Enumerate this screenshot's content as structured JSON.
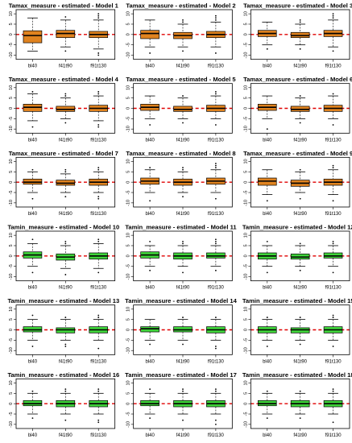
{
  "style": {
    "tamax_fill": "#e0831f",
    "tamin_fill": "#3fd43a",
    "refline_color": "#e00000",
    "frame_color": "#000000",
    "outlier_color": "#000000"
  },
  "chart_data": [
    {
      "type": "boxplot",
      "title": "Tamax_measure - estimated - Model 1",
      "variable": "Tamax_measure",
      "model": 1,
      "categories": [
        "bl40",
        "f41t90",
        "f91t130"
      ],
      "yticks": [
        -10,
        -5,
        0,
        5,
        10
      ],
      "ylim": [
        -12,
        12
      ],
      "reference_line": 0,
      "grid": false,
      "fill": "#e0831f",
      "boxes": [
        {
          "min": -8,
          "q1": -4,
          "median": -0.5,
          "q3": 1.8,
          "max": 8,
          "outliers": []
        },
        {
          "min": -6,
          "q1": -1.5,
          "median": 0.5,
          "q3": 2,
          "max": 7,
          "outliers": [
            -8,
            8.5
          ]
        },
        {
          "min": -7,
          "q1": -1.5,
          "median": 0,
          "q3": 1.5,
          "max": 7,
          "outliers": [
            -10,
            -9,
            8,
            9,
            10
          ]
        }
      ]
    },
    {
      "type": "boxplot",
      "title": "Tamax_measure - estimated - Model 2",
      "variable": "Tamax_measure",
      "model": 2,
      "categories": [
        "bl40",
        "f41t90",
        "f91t130"
      ],
      "yticks": [
        -10,
        -5,
        0,
        5,
        10
      ],
      "ylim": [
        -12,
        12
      ],
      "reference_line": 0,
      "grid": false,
      "fill": "#e0831f",
      "boxes": [
        {
          "min": -6,
          "q1": -2,
          "median": 0.5,
          "q3": 2,
          "max": 7,
          "outliers": [
            -9
          ]
        },
        {
          "min": -6,
          "q1": -2,
          "median": -0.5,
          "q3": 1,
          "max": 5,
          "outliers": [
            -8,
            6,
            7
          ]
        },
        {
          "min": -6,
          "q1": -1.5,
          "median": 0,
          "q3": 1.5,
          "max": 6,
          "outliers": [
            -9,
            7,
            8,
            9
          ]
        }
      ]
    },
    {
      "type": "boxplot",
      "title": "Tamax_measure - estimated - Model 3",
      "variable": "Tamax_measure",
      "model": 3,
      "categories": [
        "bl40",
        "f41t90",
        "f91t130"
      ],
      "yticks": [
        -10,
        -5,
        0,
        5,
        10
      ],
      "ylim": [
        -12,
        12
      ],
      "reference_line": 0,
      "grid": false,
      "fill": "#e0831f",
      "boxes": [
        {
          "min": -5,
          "q1": -1,
          "median": 0.5,
          "q3": 2,
          "max": 6,
          "outliers": [
            -7
          ]
        },
        {
          "min": -5,
          "q1": -1.5,
          "median": -0.5,
          "q3": 1,
          "max": 5,
          "outliers": [
            -7,
            6,
            7
          ]
        },
        {
          "min": -6,
          "q1": -1,
          "median": 0.5,
          "q3": 2,
          "max": 7,
          "outliers": [
            -8,
            8,
            9,
            10
          ]
        }
      ]
    },
    {
      "type": "boxplot",
      "title": "Tamax_measure - estimated - Model 4",
      "variable": "Tamax_measure",
      "model": 4,
      "categories": [
        "bl40",
        "f41t90",
        "f91t130"
      ],
      "yticks": [
        -10,
        -5,
        0,
        5,
        10
      ],
      "ylim": [
        -12,
        12
      ],
      "reference_line": 0,
      "grid": false,
      "fill": "#e0831f",
      "boxes": [
        {
          "min": -6,
          "q1": -1.5,
          "median": 0.5,
          "q3": 2,
          "max": 7,
          "outliers": [
            -9,
            8
          ]
        },
        {
          "min": -5,
          "q1": -1.5,
          "median": -0.5,
          "q3": 1,
          "max": 5,
          "outliers": [
            -7,
            6,
            7
          ]
        },
        {
          "min": -6,
          "q1": -1.5,
          "median": 0,
          "q3": 1.5,
          "max": 6,
          "outliers": [
            -9,
            -8,
            7,
            8
          ]
        }
      ]
    },
    {
      "type": "boxplot",
      "title": "Tamax_measure - estimated - Model 5",
      "variable": "Tamax_measure",
      "model": 5,
      "categories": [
        "bl40",
        "f41t90",
        "f91t130"
      ],
      "yticks": [
        -10,
        -5,
        0,
        5,
        10
      ],
      "ylim": [
        -12,
        12
      ],
      "reference_line": 0,
      "grid": false,
      "fill": "#e0831f",
      "boxes": [
        {
          "min": -5,
          "q1": -1,
          "median": 0.5,
          "q3": 2,
          "max": 6,
          "outliers": [
            -8
          ]
        },
        {
          "min": -5,
          "q1": -1.5,
          "median": -0.5,
          "q3": 1,
          "max": 5,
          "outliers": [
            -7,
            6
          ]
        },
        {
          "min": -5,
          "q1": -1.5,
          "median": 0,
          "q3": 1.5,
          "max": 6,
          "outliers": [
            -8,
            7,
            8
          ]
        }
      ]
    },
    {
      "type": "boxplot",
      "title": "Tamax_measure - estimated - Model 6",
      "variable": "Tamax_measure",
      "model": 6,
      "categories": [
        "bl40",
        "f41t90",
        "f91t130"
      ],
      "yticks": [
        -10,
        -5,
        0,
        5,
        10
      ],
      "ylim": [
        -12,
        12
      ],
      "reference_line": 0,
      "grid": false,
      "fill": "#e0831f",
      "boxes": [
        {
          "min": -5,
          "q1": -1,
          "median": 0.5,
          "q3": 2,
          "max": 6,
          "outliers": [
            -10
          ]
        },
        {
          "min": -5,
          "q1": -1.5,
          "median": -0.5,
          "q3": 1,
          "max": 5,
          "outliers": [
            -7,
            6
          ]
        },
        {
          "min": -5,
          "q1": -1.5,
          "median": 0,
          "q3": 1.5,
          "max": 6,
          "outliers": [
            -8,
            7
          ]
        }
      ]
    },
    {
      "type": "boxplot",
      "title": "Tamax_measure - estimated - Model 7",
      "variable": "Tamax_measure",
      "model": 7,
      "categories": [
        "bl40",
        "f41t90",
        "f91t130"
      ],
      "yticks": [
        -10,
        -5,
        0,
        5,
        10
      ],
      "ylim": [
        -12,
        12
      ],
      "reference_line": 0,
      "grid": false,
      "fill": "#e0831f",
      "boxes": [
        {
          "min": -5,
          "q1": -1,
          "median": 0,
          "q3": 1.5,
          "max": 5,
          "outliers": [
            -8,
            6
          ]
        },
        {
          "min": -5,
          "q1": -1.5,
          "median": -0.5,
          "q3": 1,
          "max": 4,
          "outliers": [
            -7,
            5,
            6
          ]
        },
        {
          "min": -5,
          "q1": -1.5,
          "median": 0,
          "q3": 1.5,
          "max": 5,
          "outliers": [
            -8,
            -7,
            6,
            7
          ]
        }
      ]
    },
    {
      "type": "boxplot",
      "title": "Tamax_measure - estimated - Model 8",
      "variable": "Tamax_measure",
      "model": 8,
      "categories": [
        "bl40",
        "f41t90",
        "f91t130"
      ],
      "yticks": [
        -10,
        -5,
        0,
        5,
        10
      ],
      "ylim": [
        -12,
        12
      ],
      "reference_line": 0,
      "grid": false,
      "fill": "#e0831f",
      "boxes": [
        {
          "min": -5,
          "q1": -1,
          "median": 0.5,
          "q3": 2,
          "max": 6,
          "outliers": [
            -9,
            7
          ]
        },
        {
          "min": -5,
          "q1": -1.5,
          "median": 0,
          "q3": 1.5,
          "max": 5,
          "outliers": [
            -7,
            6,
            7
          ]
        },
        {
          "min": -5,
          "q1": -1,
          "median": 0.5,
          "q3": 2,
          "max": 6,
          "outliers": [
            -8,
            7,
            8,
            9
          ]
        }
      ]
    },
    {
      "type": "boxplot",
      "title": "Tamax_measure - estimated - Model 9",
      "variable": "Tamax_measure",
      "model": 9,
      "categories": [
        "bl40",
        "f41t90",
        "f91t130"
      ],
      "yticks": [
        -10,
        -5,
        0,
        5,
        10
      ],
      "ylim": [
        -12,
        12
      ],
      "reference_line": 0,
      "grid": false,
      "fill": "#e0831f",
      "boxes": [
        {
          "min": -6,
          "q1": -1.5,
          "median": 0.5,
          "q3": 2,
          "max": 6,
          "outliers": [
            -9
          ]
        },
        {
          "min": -5,
          "q1": -2,
          "median": -0.5,
          "q3": 1,
          "max": 5,
          "outliers": [
            -8,
            6
          ]
        },
        {
          "min": -6,
          "q1": -1.5,
          "median": 0,
          "q3": 1.5,
          "max": 6,
          "outliers": [
            -9,
            7,
            8
          ]
        }
      ]
    },
    {
      "type": "boxplot",
      "title": "Tamin_measure - estimated - Model 10",
      "variable": "Tamin_measure",
      "model": 10,
      "categories": [
        "bl40",
        "f41t90",
        "f91t130"
      ],
      "yticks": [
        -10,
        -5,
        0,
        5,
        10
      ],
      "ylim": [
        -12,
        12
      ],
      "reference_line": 0,
      "grid": false,
      "fill": "#3fd43a",
      "boxes": [
        {
          "min": -5,
          "q1": -1,
          "median": 0.5,
          "q3": 2,
          "max": 6,
          "outliers": [
            -8,
            8
          ]
        },
        {
          "min": -6,
          "q1": -2,
          "median": -0.5,
          "q3": 1,
          "max": 5,
          "outliers": [
            -9,
            6,
            7
          ]
        },
        {
          "min": -6,
          "q1": -1.5,
          "median": 0,
          "q3": 1.5,
          "max": 6,
          "outliers": [
            -8,
            7,
            8
          ]
        }
      ]
    },
    {
      "type": "boxplot",
      "title": "Tamin_measure - estimated - Model 11",
      "variable": "Tamin_measure",
      "model": 11,
      "categories": [
        "bl40",
        "f41t90",
        "f91t130"
      ],
      "yticks": [
        -10,
        -5,
        0,
        5,
        10
      ],
      "ylim": [
        -12,
        12
      ],
      "reference_line": 0,
      "grid": false,
      "fill": "#3fd43a",
      "boxes": [
        {
          "min": -5,
          "q1": -1,
          "median": 0.5,
          "q3": 2,
          "max": 5,
          "outliers": [
            -7,
            7
          ]
        },
        {
          "min": -5,
          "q1": -1.5,
          "median": 0,
          "q3": 1.5,
          "max": 5,
          "outliers": [
            -8,
            6,
            7
          ]
        },
        {
          "min": -5,
          "q1": -1,
          "median": 0,
          "q3": 1.5,
          "max": 5,
          "outliers": [
            -7,
            6,
            7,
            8
          ]
        }
      ]
    },
    {
      "type": "boxplot",
      "title": "Tamin_measure - estimated - Model 12",
      "variable": "Tamin_measure",
      "model": 12,
      "categories": [
        "bl40",
        "f41t90",
        "f91t130"
      ],
      "yticks": [
        -10,
        -5,
        0,
        5,
        10
      ],
      "ylim": [
        -12,
        12
      ],
      "reference_line": 0,
      "grid": false,
      "fill": "#3fd43a",
      "boxes": [
        {
          "min": -5,
          "q1": -1.5,
          "median": 0,
          "q3": 1.5,
          "max": 5,
          "outliers": [
            -8,
            7
          ]
        },
        {
          "min": -5,
          "q1": -1.5,
          "median": -0.5,
          "q3": 1,
          "max": 5,
          "outliers": [
            -7,
            6
          ]
        },
        {
          "min": -5,
          "q1": -1,
          "median": 0,
          "q3": 1.5,
          "max": 5,
          "outliers": [
            -8,
            6,
            7
          ]
        }
      ]
    },
    {
      "type": "boxplot",
      "title": "Tamin_measure - estimated - Model 13",
      "variable": "Tamin_measure",
      "model": 13,
      "categories": [
        "bl40",
        "f41t90",
        "f91t130"
      ],
      "yticks": [
        -10,
        -5,
        0,
        5,
        10
      ],
      "ylim": [
        -12,
        12
      ],
      "reference_line": 0,
      "grid": false,
      "fill": "#3fd43a",
      "boxes": [
        {
          "min": -5,
          "q1": -1,
          "median": 0,
          "q3": 1.5,
          "max": 5,
          "outliers": [
            -8,
            7
          ]
        },
        {
          "min": -5,
          "q1": -1.5,
          "median": 0,
          "q3": 1,
          "max": 5,
          "outliers": [
            -8,
            -7,
            6
          ]
        },
        {
          "min": -5,
          "q1": -1.5,
          "median": 0,
          "q3": 1.5,
          "max": 5,
          "outliers": [
            -9,
            6,
            7
          ]
        }
      ]
    },
    {
      "type": "boxplot",
      "title": "Tamin_measure - estimated - Model 14",
      "variable": "Tamin_measure",
      "model": 14,
      "categories": [
        "bl40",
        "f41t90",
        "f91t130"
      ],
      "yticks": [
        -10,
        -5,
        0,
        5,
        10
      ],
      "ylim": [
        -12,
        12
      ],
      "reference_line": 0,
      "grid": false,
      "fill": "#3fd43a",
      "boxes": [
        {
          "min": -5,
          "q1": -1,
          "median": 0.5,
          "q3": 1.5,
          "max": 5,
          "outliers": [
            -7
          ]
        },
        {
          "min": -5,
          "q1": -1,
          "median": 0,
          "q3": 1.5,
          "max": 5,
          "outliers": [
            -7,
            6
          ]
        },
        {
          "min": -5,
          "q1": -1.5,
          "median": 0,
          "q3": 1.5,
          "max": 5,
          "outliers": [
            -9,
            -8,
            6
          ]
        }
      ]
    },
    {
      "type": "boxplot",
      "title": "Tamin_measure - estimated - Model 15",
      "variable": "Tamin_measure",
      "model": 15,
      "categories": [
        "bl40",
        "f41t90",
        "f91t130"
      ],
      "yticks": [
        -10,
        -5,
        0,
        5,
        10
      ],
      "ylim": [
        -12,
        12
      ],
      "reference_line": 0,
      "grid": false,
      "fill": "#3fd43a",
      "boxes": [
        {
          "min": -5,
          "q1": -1.5,
          "median": 0,
          "q3": 1.5,
          "max": 5,
          "outliers": [
            -8,
            6
          ]
        },
        {
          "min": -5,
          "q1": -1.5,
          "median": 0,
          "q3": 1,
          "max": 5,
          "outliers": [
            -7,
            6
          ]
        },
        {
          "min": -5,
          "q1": -1.5,
          "median": 0,
          "q3": 1.5,
          "max": 5,
          "outliers": [
            -8,
            6,
            7
          ]
        }
      ]
    },
    {
      "type": "boxplot",
      "title": "Tamin_measure - estimated - Model 16",
      "variable": "Tamin_measure",
      "model": 16,
      "categories": [
        "bl40",
        "f41t90",
        "f91t130"
      ],
      "yticks": [
        -10,
        -5,
        0,
        5,
        10
      ],
      "ylim": [
        -12,
        12
      ],
      "reference_line": 0,
      "grid": false,
      "fill": "#3fd43a",
      "boxes": [
        {
          "min": -5,
          "q1": -1,
          "median": 0,
          "q3": 1.5,
          "max": 5,
          "outliers": [
            -7,
            6
          ]
        },
        {
          "min": -5,
          "q1": -1.5,
          "median": 0,
          "q3": 1.5,
          "max": 5,
          "outliers": [
            -8,
            6,
            7
          ]
        },
        {
          "min": -5,
          "q1": -1.5,
          "median": 0,
          "q3": 1.5,
          "max": 5,
          "outliers": [
            -9,
            -8,
            6,
            7
          ]
        }
      ]
    },
    {
      "type": "boxplot",
      "title": "Tamin_measure - estimated - Model 17",
      "variable": "Tamin_measure",
      "model": 17,
      "categories": [
        "bl40",
        "f41t90",
        "f91t130"
      ],
      "yticks": [
        -10,
        -5,
        0,
        5,
        10
      ],
      "ylim": [
        -12,
        12
      ],
      "reference_line": 0,
      "grid": false,
      "fill": "#3fd43a",
      "boxes": [
        {
          "min": -5,
          "q1": -1,
          "median": 0,
          "q3": 1.5,
          "max": 5,
          "outliers": [
            -7,
            7
          ]
        },
        {
          "min": -5,
          "q1": -1.5,
          "median": 0,
          "q3": 1.5,
          "max": 5,
          "outliers": [
            -8,
            6,
            7
          ]
        },
        {
          "min": -5,
          "q1": -1.5,
          "median": 0,
          "q3": 1.5,
          "max": 5,
          "outliers": [
            -10,
            -8,
            6,
            7
          ]
        }
      ]
    },
    {
      "type": "boxplot",
      "title": "Tamin_measure - estimated - Model 18",
      "variable": "Tamin_measure",
      "model": 18,
      "categories": [
        "bl40",
        "f41t90",
        "f91t130"
      ],
      "yticks": [
        -10,
        -5,
        0,
        5,
        10
      ],
      "ylim": [
        -12,
        12
      ],
      "reference_line": 0,
      "grid": false,
      "fill": "#3fd43a",
      "boxes": [
        {
          "min": -5,
          "q1": -1,
          "median": 0,
          "q3": 1.5,
          "max": 5,
          "outliers": [
            -7,
            6
          ]
        },
        {
          "min": -5,
          "q1": -1.5,
          "median": 0,
          "q3": 1.5,
          "max": 5,
          "outliers": [
            -7,
            6
          ]
        },
        {
          "min": -5,
          "q1": -1.5,
          "median": 0,
          "q3": 1.5,
          "max": 5,
          "outliers": [
            -9,
            6,
            7
          ]
        }
      ]
    }
  ]
}
